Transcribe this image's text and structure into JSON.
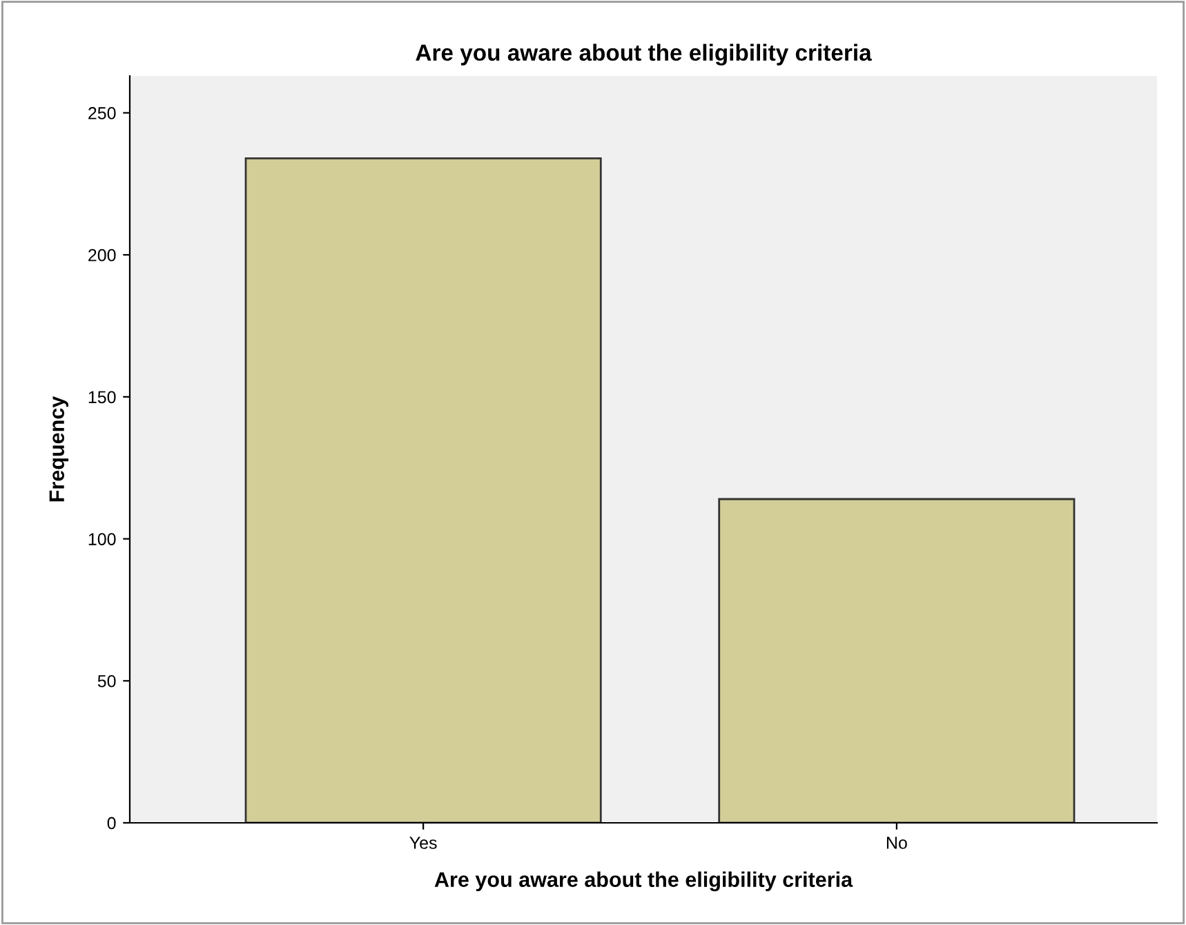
{
  "chart_data": {
    "type": "bar",
    "title": "Are you aware about the eligibility criteria",
    "xlabel": "Are you aware about the eligibility criteria",
    "ylabel": "Frequency",
    "categories": [
      "Yes",
      "No"
    ],
    "values": [
      234,
      114
    ],
    "color": "#d3ce98",
    "ylim": [
      0,
      263
    ],
    "yticks": [
      0,
      50,
      100,
      150,
      200,
      250
    ],
    "grid": false
  }
}
